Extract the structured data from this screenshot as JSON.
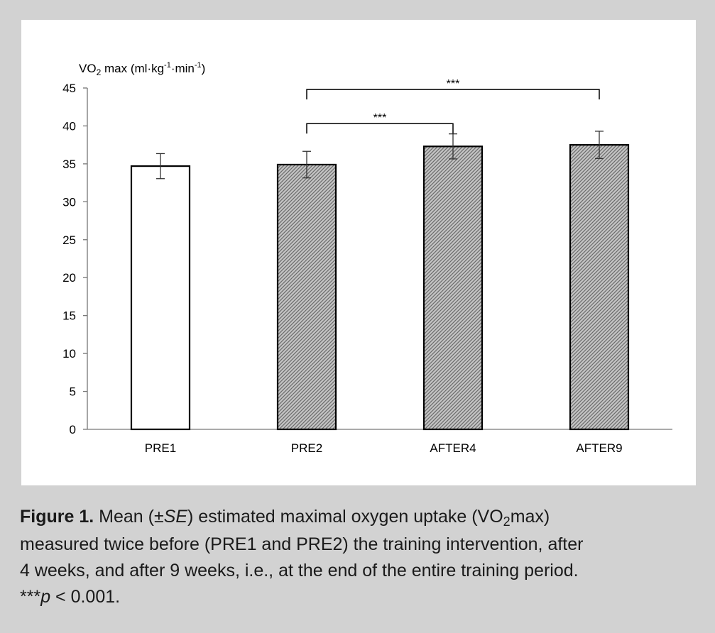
{
  "chart_data": {
    "type": "bar",
    "ylabel": {
      "prefix": "V",
      "o": "O",
      "sub": "2",
      "mid": " max (ml·kg",
      "exp1": "-1",
      "mid2": "·min",
      "exp2": "-1",
      "end": ")"
    },
    "categories": [
      "PRE1",
      "PRE2",
      "AFTER4",
      "AFTER9"
    ],
    "values": [
      34.7,
      34.9,
      37.3,
      37.5
    ],
    "errors": [
      1.65,
      1.75,
      1.65,
      1.8
    ],
    "fills": [
      "white",
      "hatched",
      "hatched",
      "hatched"
    ],
    "ylim": [
      0,
      45
    ],
    "yticks": [
      "0",
      "5",
      "10",
      "15",
      "20",
      "25",
      "30",
      "35",
      "40",
      "45"
    ],
    "grid": false,
    "significance": [
      {
        "from": 1,
        "to": 2,
        "label": "***",
        "level": 40.3
      },
      {
        "from": 1,
        "to": 3,
        "label": "***",
        "level": 44.8
      }
    ]
  },
  "caption": {
    "label": "Figure 1.",
    "p1": " Mean (±",
    "se": "SE",
    "p2": ") estimated maximal oxygen uptake (V",
    "o2": "O",
    "o2sub": "2",
    "p3": "max)",
    "line2": "measured twice before (PRE1 and PRE2) the training intervention, after",
    "line3": "4 weeks, and after 9 weeks, i.e., at the end of the entire training period.",
    "stars": "***",
    "pvar": "p",
    "pval": " < 0.001."
  }
}
